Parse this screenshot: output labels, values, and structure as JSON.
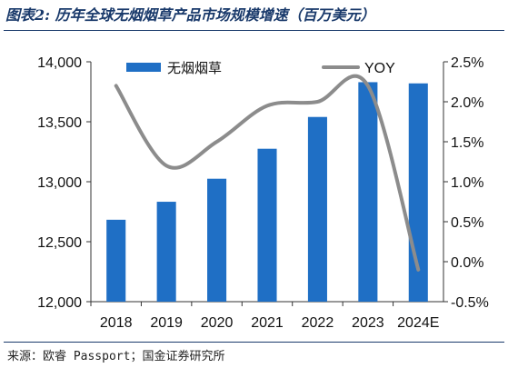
{
  "title": "图表2: 历年全球无烟烟草产品市场规模增速（百万美元）",
  "source": "来源：欧睿 Passport；国金证券研究所",
  "chart_data": {
    "type": "bar+line",
    "categories": [
      "2018",
      "2019",
      "2020",
      "2021",
      "2022",
      "2023",
      "2024E"
    ],
    "series": [
      {
        "name": "无烟烟草",
        "type": "bar",
        "axis": "left",
        "color": "#1f6fc5",
        "values": [
          12683,
          12833,
          13025,
          13275,
          13540,
          13830,
          13820
        ]
      },
      {
        "name": "YOY",
        "type": "line",
        "axis": "right",
        "color": "#8c8c8c",
        "values": [
          2.2,
          1.2,
          1.5,
          1.95,
          2.0,
          2.2,
          -0.1
        ]
      }
    ],
    "left_axis": {
      "min": 12000,
      "max": 14000,
      "ticks": [
        "12,000",
        "12,500",
        "13,000",
        "13,500",
        "14,000"
      ],
      "tick_values": [
        12000,
        12500,
        13000,
        13500,
        14000
      ]
    },
    "right_axis": {
      "min": -0.5,
      "max": 2.5,
      "ticks": [
        "-0.5%",
        "0.0%",
        "0.5%",
        "1.0%",
        "1.5%",
        "2.0%",
        "2.5%"
      ],
      "tick_values": [
        -0.5,
        0.0,
        0.5,
        1.0,
        1.5,
        2.0,
        2.5
      ]
    },
    "legend_placement": "top",
    "grid": false
  }
}
